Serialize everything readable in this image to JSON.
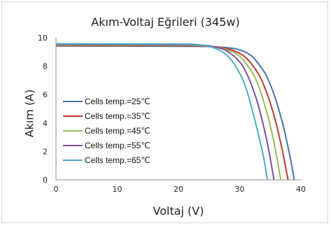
{
  "chart_data": {
    "type": "line",
    "title": "Akım-Voltaj Eğrileri (345w)",
    "xlabel": "Voltaj (V)",
    "ylabel": "Akım (A)",
    "xlim": [
      0,
      40
    ],
    "ylim": [
      0,
      10
    ],
    "xticks": [
      0,
      10,
      20,
      30,
      40
    ],
    "yticks": [
      0,
      2,
      4,
      6,
      8,
      10
    ],
    "grid": false,
    "legend": "left",
    "series": [
      {
        "name": "Cells temp.=25℃",
        "color": "#4a72b0",
        "x": [
          0,
          20,
          25,
          28,
          30,
          32,
          34,
          35,
          36,
          37,
          38,
          38.5,
          38.9
        ],
        "y": [
          9.42,
          9.4,
          9.38,
          9.3,
          9.15,
          8.7,
          7.6,
          6.7,
          5.5,
          4.0,
          2.1,
          1.0,
          0
        ]
      },
      {
        "name": "Cells temp.=35℃",
        "color": "#c0392b",
        "x": [
          0,
          20,
          25,
          27,
          29,
          31,
          33,
          34,
          35,
          36,
          37,
          37.5,
          37.9
        ],
        "y": [
          9.46,
          9.44,
          9.4,
          9.3,
          9.1,
          8.6,
          7.5,
          6.6,
          5.4,
          3.9,
          2.0,
          0.9,
          0
        ]
      },
      {
        "name": "Cells temp.=45℃",
        "color": "#9bbb59",
        "x": [
          0,
          20,
          24,
          26,
          28,
          30,
          32,
          33,
          34,
          35,
          35.8,
          36.3,
          36.7
        ],
        "y": [
          9.5,
          9.48,
          9.45,
          9.35,
          9.15,
          8.7,
          7.6,
          6.7,
          5.4,
          3.8,
          2.2,
          1.0,
          0
        ]
      },
      {
        "name": "Cells temp.=55℃",
        "color": "#7b4fa3",
        "x": [
          0,
          20,
          24,
          26,
          28,
          30,
          31,
          32,
          33,
          34,
          34.7,
          35.2,
          35.6
        ],
        "y": [
          9.54,
          9.52,
          9.48,
          9.35,
          9.05,
          8.3,
          7.6,
          6.6,
          5.3,
          3.6,
          2.2,
          1.0,
          0
        ]
      },
      {
        "name": "Cells temp.=65℃",
        "color": "#4bacc6",
        "x": [
          0,
          20,
          23,
          25,
          27,
          28.5,
          30,
          31,
          32,
          33,
          33.7,
          34.2,
          34.5
        ],
        "y": [
          9.58,
          9.56,
          9.52,
          9.4,
          9.05,
          8.5,
          7.5,
          6.5,
          5.0,
          3.3,
          2.0,
          0.9,
          0
        ]
      }
    ]
  }
}
